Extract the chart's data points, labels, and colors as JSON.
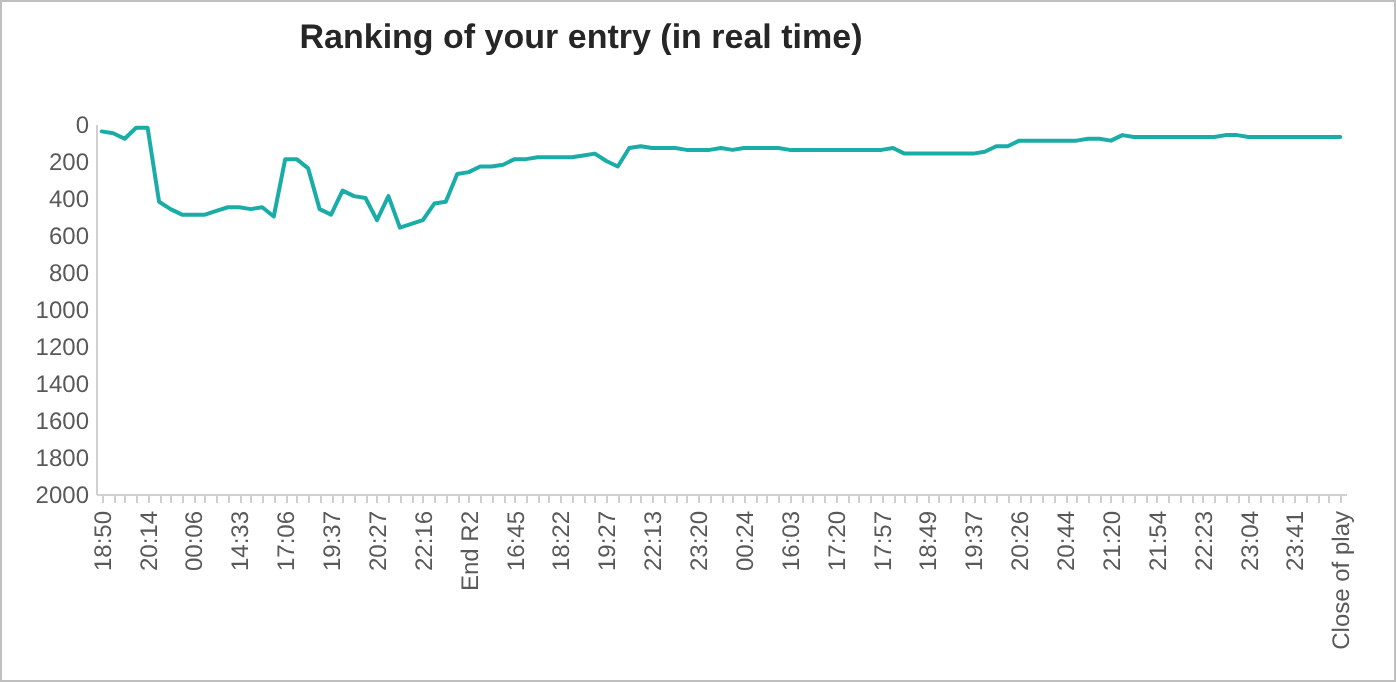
{
  "chart_data": {
    "type": "line",
    "title": "Ranking of your entry (in real time)",
    "categories": [
      "18:50",
      null,
      null,
      null,
      "20:14",
      null,
      null,
      null,
      "00:06",
      null,
      null,
      null,
      "14:33",
      null,
      null,
      null,
      "17:06",
      null,
      null,
      null,
      "19:37",
      null,
      null,
      null,
      "20:27",
      null,
      null,
      null,
      "22:16",
      null,
      null,
      null,
      "End R2",
      null,
      null,
      null,
      "16:45",
      null,
      null,
      null,
      "18:22",
      null,
      null,
      null,
      "19:27",
      null,
      null,
      null,
      "22:13",
      null,
      null,
      null,
      "23:20",
      null,
      null,
      null,
      "00:24",
      null,
      null,
      null,
      "16:03",
      null,
      null,
      null,
      "17:20",
      null,
      null,
      null,
      "17:57",
      null,
      null,
      null,
      "18:49",
      null,
      null,
      null,
      "19:37",
      null,
      null,
      null,
      "20:26",
      null,
      null,
      null,
      "20:44",
      null,
      null,
      null,
      "21:20",
      null,
      null,
      null,
      "21:54",
      null,
      null,
      null,
      "22:23",
      null,
      null,
      null,
      "23:04",
      null,
      null,
      null,
      "23:41",
      null,
      null,
      null,
      "Close of play"
    ],
    "series": [
      {
        "color": "#1aada8",
        "values": [
          40,
          50,
          80,
          20,
          20,
          420,
          460,
          490,
          490,
          490,
          470,
          450,
          450,
          460,
          450,
          500,
          190,
          190,
          240,
          460,
          490,
          360,
          390,
          400,
          520,
          390,
          560,
          540,
          520,
          430,
          420,
          270,
          260,
          230,
          230,
          220,
          190,
          190,
          180,
          180,
          180,
          180,
          170,
          160,
          200,
          230,
          130,
          120,
          130,
          130,
          130,
          140,
          140,
          140,
          130,
          140,
          130,
          130,
          130,
          130,
          140,
          140,
          140,
          140,
          140,
          140,
          140,
          140,
          140,
          130,
          160,
          160,
          160,
          160,
          160,
          160,
          160,
          150,
          120,
          120,
          90,
          90,
          90,
          90,
          90,
          90,
          80,
          80,
          90,
          60,
          70,
          70,
          70,
          70,
          70,
          70,
          70,
          70,
          60,
          60,
          70,
          70,
          70,
          70,
          70,
          70,
          70,
          70,
          70
        ]
      }
    ],
    "ylim": [
      2000,
      0
    ],
    "yticks": [
      0,
      200,
      400,
      600,
      800,
      1000,
      1200,
      1400,
      1600,
      1800,
      2000
    ],
    "grid": false,
    "legend": false
  }
}
